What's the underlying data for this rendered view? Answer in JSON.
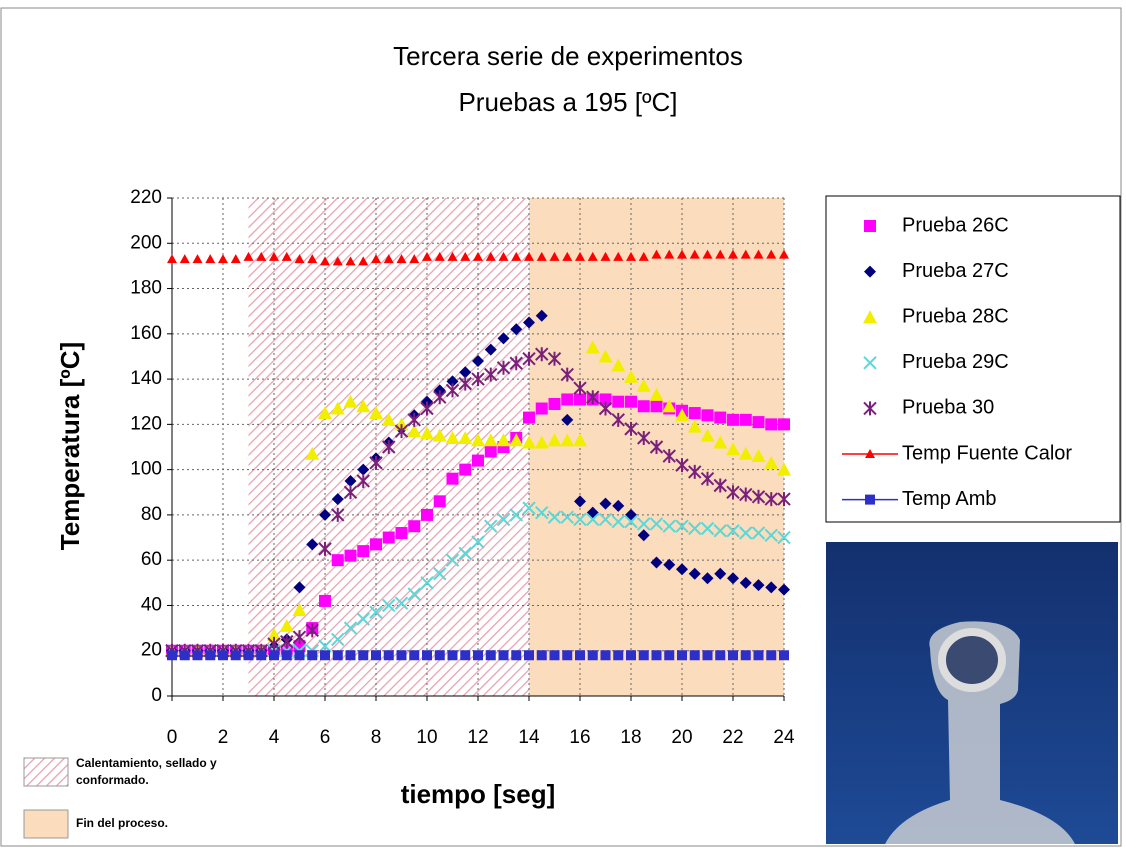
{
  "chart_data": {
    "type": "scatter",
    "title": "Tercera serie de experimentos",
    "subtitle": "Pruebas a 195 [ºC]",
    "x_label": "tiempo [seg]",
    "y_label": "Temperatura [ºC]",
    "xlim": [
      0,
      24
    ],
    "ylim": [
      0,
      220
    ],
    "xticks": [
      0,
      2,
      4,
      6,
      8,
      10,
      12,
      14,
      16,
      18,
      20,
      22,
      24
    ],
    "yticks": [
      0,
      20,
      40,
      60,
      80,
      100,
      120,
      140,
      160,
      180,
      200,
      220
    ],
    "grid": true,
    "legend": "right",
    "regions": [
      {
        "start": 3,
        "end": 14,
        "label": "Calentamiento, sellado y conformado.",
        "color": "#e8a0b0"
      },
      {
        "start": 14,
        "end": 24,
        "label": "Fin del proceso.",
        "color": "#fbdcbc"
      }
    ],
    "x": [
      0,
      0.5,
      1,
      1.5,
      2,
      2.5,
      3,
      3.5,
      4,
      4.5,
      5,
      5.5,
      6,
      6.5,
      7,
      7.5,
      8,
      8.5,
      9,
      9.5,
      10,
      10.5,
      11,
      11.5,
      12,
      12.5,
      13,
      13.5,
      14,
      14.5,
      15,
      15.5,
      16,
      16.5,
      17,
      17.5,
      18,
      18.5,
      19,
      19.5,
      20,
      20.5,
      21,
      21.5,
      22,
      22.5,
      23,
      23.5,
      24
    ],
    "series": [
      {
        "name": "Prueba 26C",
        "color": "#ff00ff",
        "marker": "square",
        "values": [
          20,
          20,
          20,
          20,
          20,
          20,
          20,
          20,
          20,
          20,
          22,
          30,
          42,
          60,
          62,
          64,
          67,
          70,
          72,
          75,
          80,
          86,
          96,
          100,
          104,
          108,
          110,
          114,
          123,
          127,
          129,
          131,
          131,
          131,
          131,
          130,
          130,
          128,
          128,
          127,
          126,
          125,
          124,
          123,
          122,
          122,
          121,
          120,
          120
        ]
      },
      {
        "name": "Prueba 27C",
        "color": "#000080",
        "marker": "diamond",
        "values": [
          20,
          20,
          20,
          20,
          20,
          20,
          20,
          20,
          22,
          25,
          48,
          67,
          80,
          87,
          95,
          100,
          105,
          112,
          118,
          124,
          130,
          135,
          139,
          143,
          148,
          153,
          158,
          162,
          165,
          168,
          null,
          122,
          86,
          81,
          85,
          84,
          80,
          71,
          59,
          58,
          56,
          54,
          52,
          54,
          52,
          50,
          49,
          48,
          47
        ]
      },
      {
        "name": "Prueba 28C",
        "color": "#f2ee00",
        "marker": "triangle",
        "values": [
          20,
          20,
          20,
          20,
          20,
          20,
          20,
          20,
          27,
          31,
          38,
          107,
          125,
          127,
          130,
          128,
          125,
          122,
          120,
          117,
          116,
          115,
          114,
          114,
          113,
          113,
          113,
          113,
          112,
          112,
          113,
          113,
          113,
          154,
          150,
          146,
          141,
          137,
          133,
          128,
          124,
          119,
          115,
          112,
          109,
          107,
          106,
          103,
          100
        ]
      },
      {
        "name": "Prueba 29C",
        "color": "#5ad8d8",
        "marker": "x",
        "values": [
          20,
          20,
          20,
          20,
          20,
          20,
          20,
          20,
          20,
          20,
          20,
          20,
          22,
          25,
          30,
          34,
          37,
          40,
          41,
          45,
          50,
          54,
          60,
          63,
          68,
          75,
          78,
          80,
          83,
          81,
          79,
          79,
          78,
          78,
          78,
          77,
          77,
          76,
          76,
          75,
          75,
          74,
          74,
          73,
          73,
          72,
          72,
          71,
          70
        ]
      },
      {
        "name": "Prueba 30",
        "color": "#7a207a",
        "marker": "asterisk",
        "values": [
          20,
          20,
          20,
          20,
          20,
          20,
          20,
          20,
          23,
          24,
          26,
          29,
          65,
          80,
          90,
          95,
          103,
          110,
          117,
          122,
          127,
          132,
          135,
          138,
          140,
          142,
          145,
          147,
          149,
          151,
          149,
          142,
          136,
          132,
          127,
          122,
          118,
          114,
          110,
          106,
          102,
          99,
          96,
          93,
          90,
          89,
          88,
          87,
          87
        ]
      },
      {
        "name": "Temp Fuente Calor",
        "color": "#ff0000",
        "marker": "triangle-small",
        "values": [
          193,
          193,
          193,
          193,
          193,
          193,
          194,
          194,
          194,
          194,
          193,
          193,
          192,
          192,
          192,
          192,
          193,
          193,
          193,
          193,
          194,
          194,
          194,
          194,
          194,
          194,
          194,
          194,
          194,
          194,
          194,
          194,
          194,
          194,
          194,
          194,
          194,
          194,
          195,
          195,
          195,
          195,
          195,
          195,
          195,
          195,
          195,
          195,
          195
        ]
      },
      {
        "name": "Temp Amb",
        "color": "#2e2ec8",
        "marker": "square-small",
        "values": [
          18,
          18,
          18,
          18,
          18,
          18,
          18,
          18,
          18,
          18,
          18,
          18,
          18,
          18,
          18,
          18,
          18,
          18,
          18,
          18,
          18,
          18,
          18,
          18,
          18,
          18,
          18,
          18,
          18,
          18,
          18,
          18,
          18,
          18,
          18,
          18,
          18,
          18,
          18,
          18,
          18,
          18,
          18,
          18,
          18,
          18,
          18,
          18,
          18
        ]
      }
    ]
  }
}
